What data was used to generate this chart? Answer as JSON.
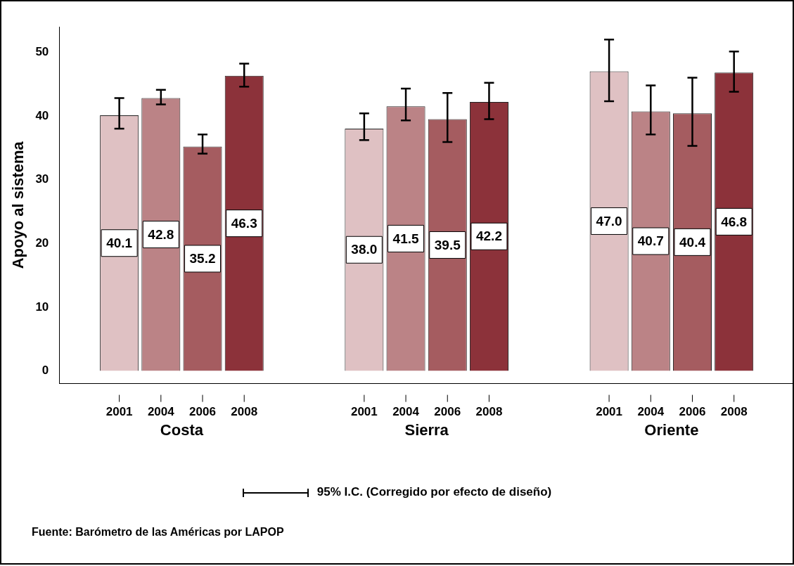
{
  "chart_data": {
    "type": "bar",
    "ylabel": "Apoyo al sistema",
    "categories": [
      "Costa",
      "Sierra",
      "Oriente"
    ],
    "ylim": [
      -2,
      54
    ],
    "yticks": [
      0,
      10,
      20,
      30,
      40,
      50
    ],
    "series": [
      {
        "name": "2001",
        "color": "#dfc1c3",
        "values": [
          40.1,
          38.0,
          47.0
        ],
        "value_labels": [
          "40.1",
          "38.0",
          "47.0"
        ],
        "errors": [
          [
            38.0,
            42.8
          ],
          [
            36.2,
            40.4
          ],
          [
            42.3,
            52.0
          ]
        ]
      },
      {
        "name": "2004",
        "color": "#bb8386",
        "values": [
          42.8,
          41.5,
          40.7
        ],
        "value_labels": [
          "42.8",
          "41.5",
          "40.7"
        ],
        "errors": [
          [
            41.8,
            44.1
          ],
          [
            39.3,
            44.3
          ],
          [
            37.1,
            44.8
          ]
        ]
      },
      {
        "name": "2006",
        "color": "#a55c60",
        "values": [
          35.2,
          39.5,
          40.4
        ],
        "value_labels": [
          "35.2",
          "39.5",
          "40.4"
        ],
        "errors": [
          [
            34.1,
            37.1
          ],
          [
            35.9,
            43.6
          ],
          [
            35.3,
            46.0
          ]
        ]
      },
      {
        "name": "2008",
        "color": "#8c323a",
        "values": [
          46.3,
          42.2,
          46.8
        ],
        "value_labels": [
          "46.3",
          "42.2",
          "46.8"
        ],
        "errors": [
          [
            44.6,
            48.2
          ],
          [
            39.5,
            45.2
          ],
          [
            43.8,
            50.1
          ]
        ]
      }
    ],
    "annotations": [
      "95% I.C. (Corregido por efecto de diseño)",
      "Fuente: Barómetro de las Américas por LAPOP"
    ]
  }
}
